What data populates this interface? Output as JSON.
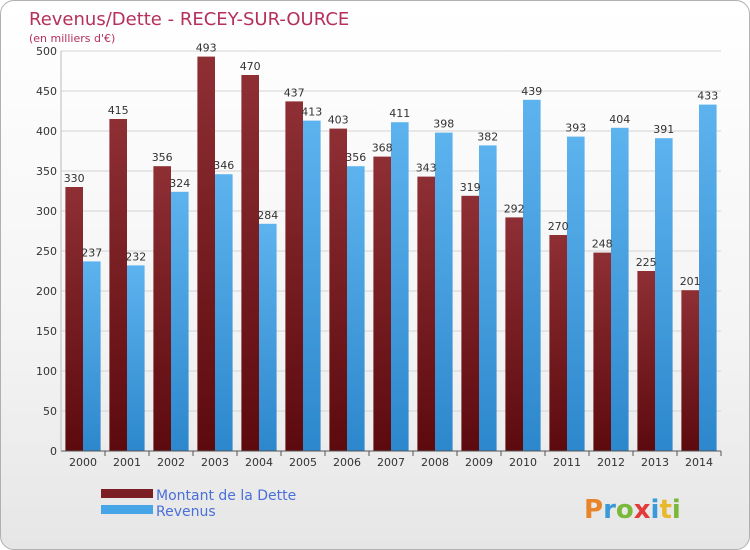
{
  "chart_data": {
    "type": "bar",
    "title": "Revenus/Dette - RECEY-SUR-OURCE",
    "subtitle": "(en milliers d'€)",
    "categories": [
      "2000",
      "2001",
      "2002",
      "2003",
      "2004",
      "2005",
      "2006",
      "2007",
      "2008",
      "2009",
      "2010",
      "2011",
      "2012",
      "2013",
      "2014"
    ],
    "series": [
      {
        "name": "Montant de la Dette",
        "color": "#7b1f24",
        "values": [
          330,
          415,
          356,
          493,
          470,
          437,
          403,
          368,
          343,
          319,
          292,
          270,
          248,
          225,
          201
        ]
      },
      {
        "name": "Revenus",
        "color": "#45a5e6",
        "values": [
          237,
          232,
          324,
          346,
          284,
          413,
          356,
          411,
          398,
          382,
          439,
          393,
          404,
          391,
          433
        ]
      }
    ],
    "ylim": [
      0,
      500
    ],
    "yticks": [
      0,
      50,
      100,
      150,
      200,
      250,
      300,
      350,
      400,
      450,
      500
    ],
    "grid": true,
    "legend_position": "bottom-left"
  },
  "logo": {
    "text": "Proxiti"
  }
}
